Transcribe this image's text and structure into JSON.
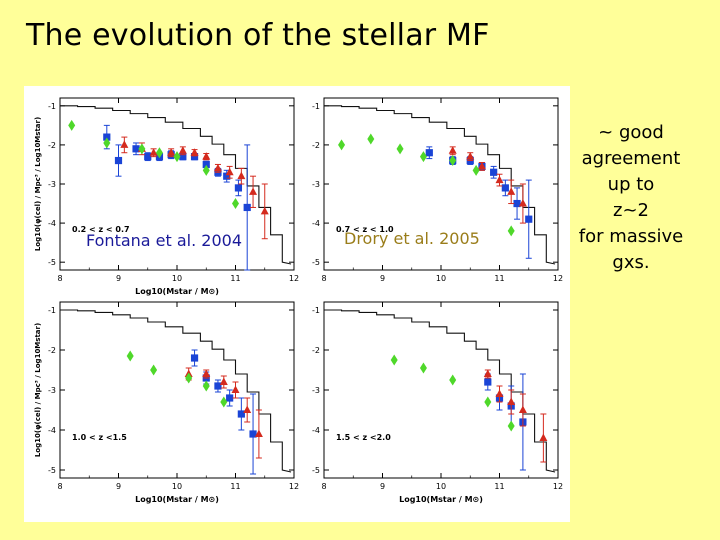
{
  "slide": {
    "title": "The evolution of the stellar MF",
    "note": [
      "~ good",
      "agreement",
      "up to",
      "z~2",
      "for massive",
      "gxs."
    ],
    "labels": {
      "fontana": "Fontana et al. 2004",
      "drory": "Drory et al. 2005"
    }
  },
  "colors": {
    "background": "#ffff99",
    "blue": "#1a44d6",
    "red": "#d42a1e",
    "green": "#4fd82a"
  },
  "chart_data": [
    {
      "type": "scatter",
      "panel": "top-left",
      "annotation": "0.2 < z < 0.7",
      "xlabel": "Log10(Mstar / M⊙)",
      "ylabel": "Log10(φ(cel) / Mpc³ / Log10Mstar)",
      "xlim": [
        8,
        12
      ],
      "ylim": [
        -5.2,
        -0.8
      ],
      "xticks": [
        "8",
        "9",
        "10",
        "11",
        "12"
      ],
      "yticks": [
        "-1",
        "-2",
        "-3",
        "-4",
        "-5"
      ],
      "local_mf": [
        [
          8.0,
          -1.0
        ],
        [
          8.3,
          -1.02
        ],
        [
          8.6,
          -1.06
        ],
        [
          8.9,
          -1.12
        ],
        [
          9.2,
          -1.2
        ],
        [
          9.5,
          -1.3
        ],
        [
          9.8,
          -1.42
        ],
        [
          10.1,
          -1.58
        ],
        [
          10.4,
          -1.78
        ],
        [
          10.6,
          -1.98
        ],
        [
          10.8,
          -2.25
        ],
        [
          11.0,
          -2.6
        ],
        [
          11.2,
          -3.05
        ],
        [
          11.4,
          -3.6
        ],
        [
          11.6,
          -4.3
        ],
        [
          11.8,
          -5.0
        ]
      ],
      "series": [
        {
          "name": "Fontana et al. 2004",
          "marker": "square",
          "color": "blue",
          "points": [
            [
              8.8,
              -1.8,
              0.3
            ],
            [
              9.0,
              -2.4,
              0.4
            ],
            [
              9.3,
              -2.1,
              0.15
            ],
            [
              9.5,
              -2.3,
              0.1
            ],
            [
              9.7,
              -2.3,
              0.1
            ],
            [
              9.9,
              -2.25,
              0.1
            ],
            [
              10.1,
              -2.3,
              0.08
            ],
            [
              10.3,
              -2.3,
              0.08
            ],
            [
              10.5,
              -2.5,
              0.08
            ],
            [
              10.7,
              -2.7,
              0.1
            ],
            [
              10.85,
              -2.8,
              0.15
            ],
            [
              11.05,
              -3.1,
              0.2
            ],
            [
              11.2,
              -3.6,
              1.6
            ]
          ]
        },
        {
          "name": "red",
          "marker": "triangle",
          "color": "red",
          "points": [
            [
              9.1,
              -2.0,
              0.2
            ],
            [
              9.4,
              -2.1,
              0.15
            ],
            [
              9.6,
              -2.2,
              0.1
            ],
            [
              9.9,
              -2.2,
              0.1
            ],
            [
              10.1,
              -2.15,
              0.1
            ],
            [
              10.3,
              -2.2,
              0.08
            ],
            [
              10.5,
              -2.3,
              0.08
            ],
            [
              10.7,
              -2.6,
              0.1
            ],
            [
              10.9,
              -2.7,
              0.15
            ],
            [
              11.1,
              -2.8,
              0.2
            ],
            [
              11.3,
              -3.2,
              0.4
            ],
            [
              11.5,
              -3.7,
              0.7
            ]
          ]
        },
        {
          "name": "green",
          "marker": "diamond",
          "color": "green",
          "points": [
            [
              8.2,
              -1.5,
              0.05
            ],
            [
              8.8,
              -1.95,
              0.05
            ],
            [
              9.4,
              -2.1,
              0.05
            ],
            [
              9.7,
              -2.2,
              0.05
            ],
            [
              10.0,
              -2.3,
              0.05
            ],
            [
              10.5,
              -2.65,
              0.05
            ],
            [
              11.0,
              -3.5,
              0.05
            ]
          ]
        }
      ]
    },
    {
      "type": "scatter",
      "panel": "top-right",
      "annotation": "0.7 < z < 1.0",
      "xlabel": "",
      "ylabel": "",
      "xlim": [
        8,
        12
      ],
      "ylim": [
        -5.2,
        -0.8
      ],
      "xticks": [
        "8",
        "9",
        "10",
        "11",
        "12"
      ],
      "yticks": [
        "-1",
        "-2",
        "-3",
        "-4",
        "-5"
      ],
      "local_mf": [
        [
          8.0,
          -1.0
        ],
        [
          8.3,
          -1.02
        ],
        [
          8.6,
          -1.06
        ],
        [
          8.9,
          -1.12
        ],
        [
          9.2,
          -1.2
        ],
        [
          9.5,
          -1.3
        ],
        [
          9.8,
          -1.42
        ],
        [
          10.1,
          -1.58
        ],
        [
          10.4,
          -1.78
        ],
        [
          10.6,
          -1.98
        ],
        [
          10.8,
          -2.25
        ],
        [
          11.0,
          -2.6
        ],
        [
          11.2,
          -3.05
        ],
        [
          11.4,
          -3.6
        ],
        [
          11.6,
          -4.3
        ],
        [
          11.8,
          -5.0
        ]
      ],
      "series": [
        {
          "name": "blue",
          "marker": "square",
          "color": "blue",
          "points": [
            [
              9.8,
              -2.2,
              0.15
            ],
            [
              10.2,
              -2.4,
              0.1
            ],
            [
              10.5,
              -2.4,
              0.1
            ],
            [
              10.7,
              -2.55,
              0.1
            ],
            [
              10.9,
              -2.7,
              0.15
            ],
            [
              11.1,
              -3.1,
              0.2
            ],
            [
              11.3,
              -3.5,
              0.4
            ],
            [
              11.5,
              -3.9,
              1.0
            ]
          ]
        },
        {
          "name": "red",
          "marker": "triangle",
          "color": "red",
          "points": [
            [
              10.2,
              -2.15,
              0.1
            ],
            [
              10.5,
              -2.3,
              0.1
            ],
            [
              10.7,
              -2.55,
              0.1
            ],
            [
              11.0,
              -2.9,
              0.15
            ],
            [
              11.2,
              -3.2,
              0.3
            ],
            [
              11.4,
              -3.5,
              0.5
            ]
          ]
        },
        {
          "name": "Drory et al. 2005",
          "marker": "diamond",
          "color": "green",
          "points": [
            [
              8.3,
              -2.0,
              0.05
            ],
            [
              8.8,
              -1.85,
              0.05
            ],
            [
              9.3,
              -2.1,
              0.05
            ],
            [
              9.7,
              -2.3,
              0.05
            ],
            [
              10.2,
              -2.4,
              0.05
            ],
            [
              10.6,
              -2.65,
              0.05
            ],
            [
              11.2,
              -4.2,
              0.05
            ]
          ]
        }
      ]
    },
    {
      "type": "scatter",
      "panel": "bottom-left",
      "annotation": "1.0 < z <1.5",
      "xlabel": "Log10(Mstar / M⊙)",
      "ylabel": "Log10(φ(cel) / Mpc³ / Log10Mstar)",
      "xlim": [
        8,
        12
      ],
      "ylim": [
        -5.2,
        -0.8
      ],
      "xticks": [
        "8",
        "9",
        "10",
        "11",
        "12"
      ],
      "yticks": [
        "-1",
        "-2",
        "-3",
        "-4",
        "-5"
      ],
      "local_mf": [
        [
          8.0,
          -1.0
        ],
        [
          8.3,
          -1.02
        ],
        [
          8.6,
          -1.06
        ],
        [
          8.9,
          -1.12
        ],
        [
          9.2,
          -1.2
        ],
        [
          9.5,
          -1.3
        ],
        [
          9.8,
          -1.42
        ],
        [
          10.1,
          -1.58
        ],
        [
          10.4,
          -1.78
        ],
        [
          10.6,
          -1.98
        ],
        [
          10.8,
          -2.25
        ],
        [
          11.0,
          -2.6
        ],
        [
          11.2,
          -3.05
        ],
        [
          11.4,
          -3.6
        ],
        [
          11.6,
          -4.3
        ],
        [
          11.8,
          -5.0
        ]
      ],
      "series": [
        {
          "name": "blue",
          "marker": "square",
          "color": "blue",
          "points": [
            [
              10.3,
              -2.2,
              0.2
            ],
            [
              10.5,
              -2.7,
              0.15
            ],
            [
              10.7,
              -2.9,
              0.15
            ],
            [
              10.9,
              -3.2,
              0.2
            ],
            [
              11.1,
              -3.6,
              0.4
            ],
            [
              11.3,
              -4.1,
              1.0
            ]
          ]
        },
        {
          "name": "red",
          "marker": "triangle",
          "color": "red",
          "points": [
            [
              10.2,
              -2.6,
              0.15
            ],
            [
              10.5,
              -2.6,
              0.1
            ],
            [
              10.8,
              -2.8,
              0.15
            ],
            [
              11.0,
              -3.0,
              0.2
            ],
            [
              11.2,
              -3.5,
              0.3
            ],
            [
              11.4,
              -4.1,
              0.6
            ]
          ]
        },
        {
          "name": "green",
          "marker": "diamond",
          "color": "green",
          "points": [
            [
              9.2,
              -2.15,
              0.05
            ],
            [
              9.6,
              -2.5,
              0.05
            ],
            [
              10.2,
              -2.7,
              0.05
            ],
            [
              10.5,
              -2.9,
              0.05
            ],
            [
              10.8,
              -3.3,
              0.05
            ]
          ]
        }
      ]
    },
    {
      "type": "scatter",
      "panel": "bottom-right",
      "annotation": "1.5 < z <2.0",
      "xlabel": "Log10(Mstar / M⊙)",
      "ylabel": "",
      "xlim": [
        8,
        12
      ],
      "ylim": [
        -5.2,
        -0.8
      ],
      "xticks": [
        "8",
        "9",
        "10",
        "11",
        "12"
      ],
      "yticks": [
        "-1",
        "-2",
        "-3",
        "-4",
        "-5"
      ],
      "local_mf": [
        [
          8.0,
          -1.0
        ],
        [
          8.3,
          -1.02
        ],
        [
          8.6,
          -1.06
        ],
        [
          8.9,
          -1.12
        ],
        [
          9.2,
          -1.2
        ],
        [
          9.5,
          -1.3
        ],
        [
          9.8,
          -1.42
        ],
        [
          10.1,
          -1.58
        ],
        [
          10.4,
          -1.78
        ],
        [
          10.6,
          -1.98
        ],
        [
          10.8,
          -2.25
        ],
        [
          11.0,
          -2.6
        ],
        [
          11.2,
          -3.05
        ],
        [
          11.4,
          -3.6
        ],
        [
          11.6,
          -4.3
        ],
        [
          11.8,
          -5.0
        ]
      ],
      "series": [
        {
          "name": "blue",
          "marker": "square",
          "color": "blue",
          "points": [
            [
              10.8,
              -2.8,
              0.2
            ],
            [
              11.0,
              -3.2,
              0.3
            ],
            [
              11.2,
              -3.4,
              0.5
            ],
            [
              11.4,
              -3.8,
              1.2
            ]
          ]
        },
        {
          "name": "red",
          "marker": "triangle",
          "color": "red",
          "points": [
            [
              10.8,
              -2.6,
              0.1
            ],
            [
              11.0,
              -3.1,
              0.2
            ],
            [
              11.2,
              -3.3,
              0.3
            ],
            [
              11.4,
              -3.5,
              0.4
            ],
            [
              11.75,
              -4.2,
              0.6
            ]
          ]
        },
        {
          "name": "green",
          "marker": "diamond",
          "color": "green",
          "points": [
            [
              9.2,
              -2.25,
              0.05
            ],
            [
              9.7,
              -2.45,
              0.05
            ],
            [
              10.2,
              -2.75,
              0.05
            ],
            [
              10.8,
              -3.3,
              0.05
            ],
            [
              11.2,
              -3.9,
              0.05
            ]
          ]
        }
      ]
    }
  ]
}
